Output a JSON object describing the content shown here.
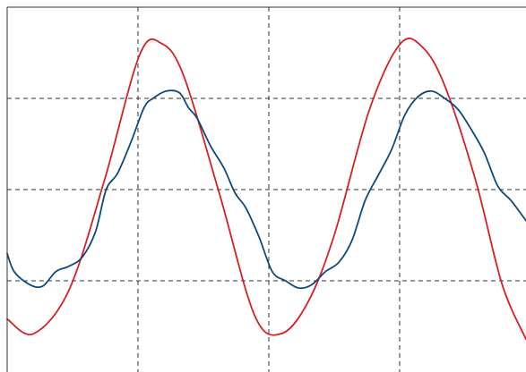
{
  "chart_data": {
    "type": "line",
    "title": "",
    "xlabel": "",
    "ylabel": "",
    "xlim": [
      0,
      587
    ],
    "ylim": [
      -1.0,
      1.0
    ],
    "grid": true,
    "x_grid": [
      148,
      296,
      444
    ],
    "y_grid": [
      -0.5,
      0.0,
      0.5
    ],
    "series": [
      {
        "color": "#d81f26",
        "x": [
          0,
          30,
          70,
          110,
          150,
          175,
          200,
          240,
          280,
          310,
          340,
          370,
          410,
          445,
          470,
          495,
          530,
          560,
          587
        ],
        "y": [
          -0.71,
          -0.79,
          -0.55,
          0.05,
          0.74,
          0.8,
          0.62,
          -0.02,
          -0.69,
          -0.79,
          -0.62,
          -0.25,
          0.44,
          0.8,
          0.78,
          0.57,
          0.05,
          -0.52,
          -0.82
        ]
      },
      {
        "color": "#0d4a7c",
        "x": [
          0,
          8,
          25,
          40,
          55,
          70,
          85,
          100,
          112,
          125,
          140,
          155,
          165,
          180,
          195,
          205,
          215,
          230,
          245,
          258,
          270,
          285,
          300,
          315,
          330,
          345,
          360,
          375,
          390,
          405,
          420,
          435,
          450,
          465,
          480,
          495,
          510,
          525,
          540,
          555,
          570,
          587
        ],
        "y": [
          -0.35,
          -0.45,
          -0.52,
          -0.53,
          -0.45,
          -0.42,
          -0.37,
          -0.23,
          0.0,
          0.09,
          0.26,
          0.45,
          0.5,
          0.54,
          0.53,
          0.45,
          0.39,
          0.24,
          0.12,
          -0.02,
          -0.1,
          -0.26,
          -0.45,
          -0.5,
          -0.54,
          -0.52,
          -0.45,
          -0.4,
          -0.28,
          -0.06,
          0.08,
          0.22,
          0.41,
          0.51,
          0.54,
          0.5,
          0.44,
          0.33,
          0.2,
          0.02,
          -0.06,
          -0.17
        ]
      }
    ]
  }
}
